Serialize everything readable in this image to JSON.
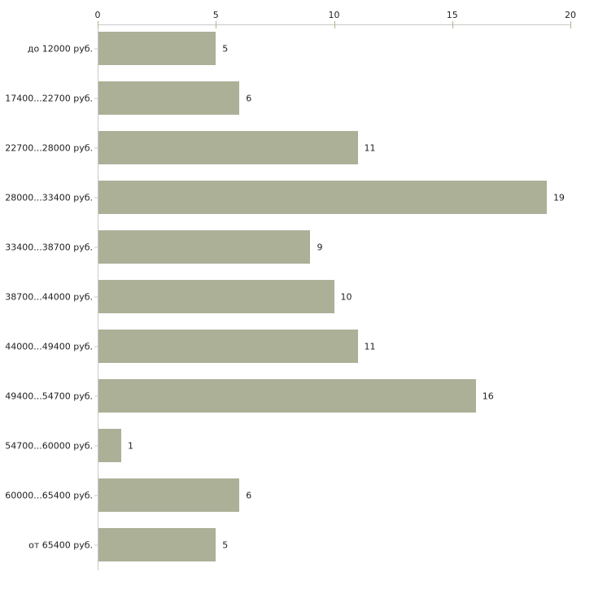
{
  "chart_data": {
    "type": "bar",
    "orientation": "horizontal",
    "title": "",
    "xlabel": "",
    "ylabel": "",
    "categories": [
      "до 12000 руб.",
      "17400...22700 руб.",
      "22700...28000 руб.",
      "28000...33400 руб.",
      "33400...38700 руб.",
      "38700...44000 руб.",
      "44000...49400 руб.",
      "49400...54700 руб.",
      "54700...60000 руб.",
      "60000...65400 руб.",
      "от 65400 руб."
    ],
    "values": [
      5,
      6,
      11,
      19,
      9,
      10,
      11,
      16,
      1,
      6,
      5
    ],
    "x_ticks": [
      0,
      5,
      10,
      15,
      20
    ],
    "xlim": [
      0,
      20
    ],
    "grid": false,
    "legend": "none",
    "colors": {
      "bar_fill": "#abb097",
      "axis_line": "#c9c9c9",
      "x_tick_mark": "#b6b28a",
      "category_tick_mark": "#c9c9c9",
      "text": "#1f1f1f",
      "background": "#ffffff"
    }
  }
}
